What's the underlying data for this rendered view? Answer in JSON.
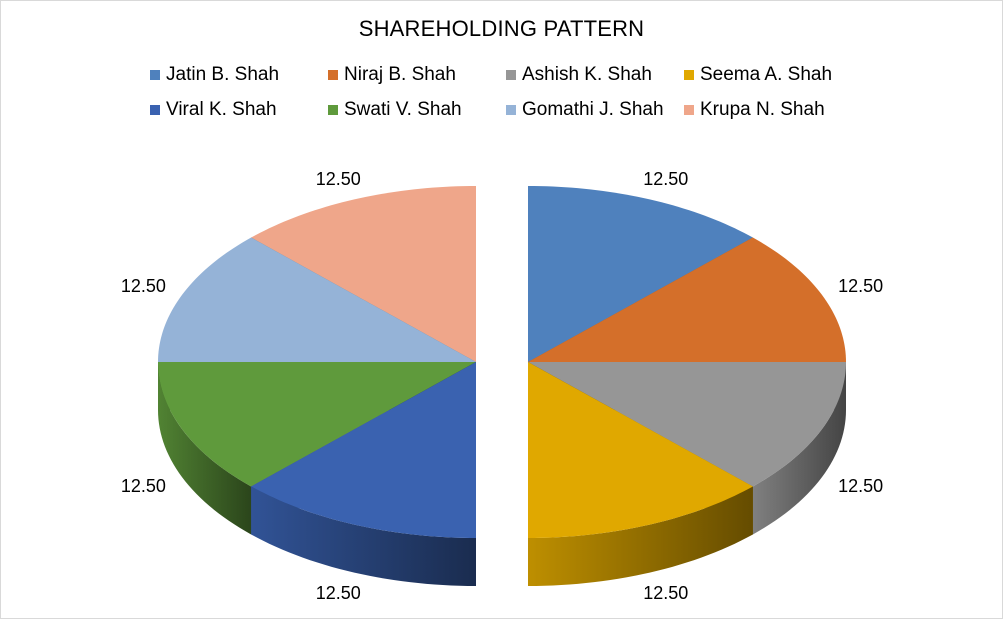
{
  "chart_data": {
    "type": "pie",
    "title": "SHAREHOLDING PATTERN",
    "categories": [
      "Jatin B. Shah",
      "Niraj B. Shah",
      "Ashish K. Shah",
      "Seema A. Shah",
      "Viral K. Shah",
      "Swati V. Shah",
      "Gomathi J. Shah",
      "Krupa N. Shah"
    ],
    "values": [
      12.5,
      12.5,
      12.5,
      12.5,
      12.5,
      12.5,
      12.5,
      12.5
    ],
    "data_labels": [
      "12.50",
      "12.50",
      "12.50",
      "12.50",
      "12.50",
      "12.50",
      "12.50",
      "12.50"
    ],
    "colors": [
      "#4f81bd",
      "#d46f2a",
      "#969696",
      "#e0a800",
      "#3a62b0",
      "#5f9a3c",
      "#95b3d7",
      "#efa68a"
    ],
    "legend_position": "top",
    "style": "3d-exploded"
  }
}
